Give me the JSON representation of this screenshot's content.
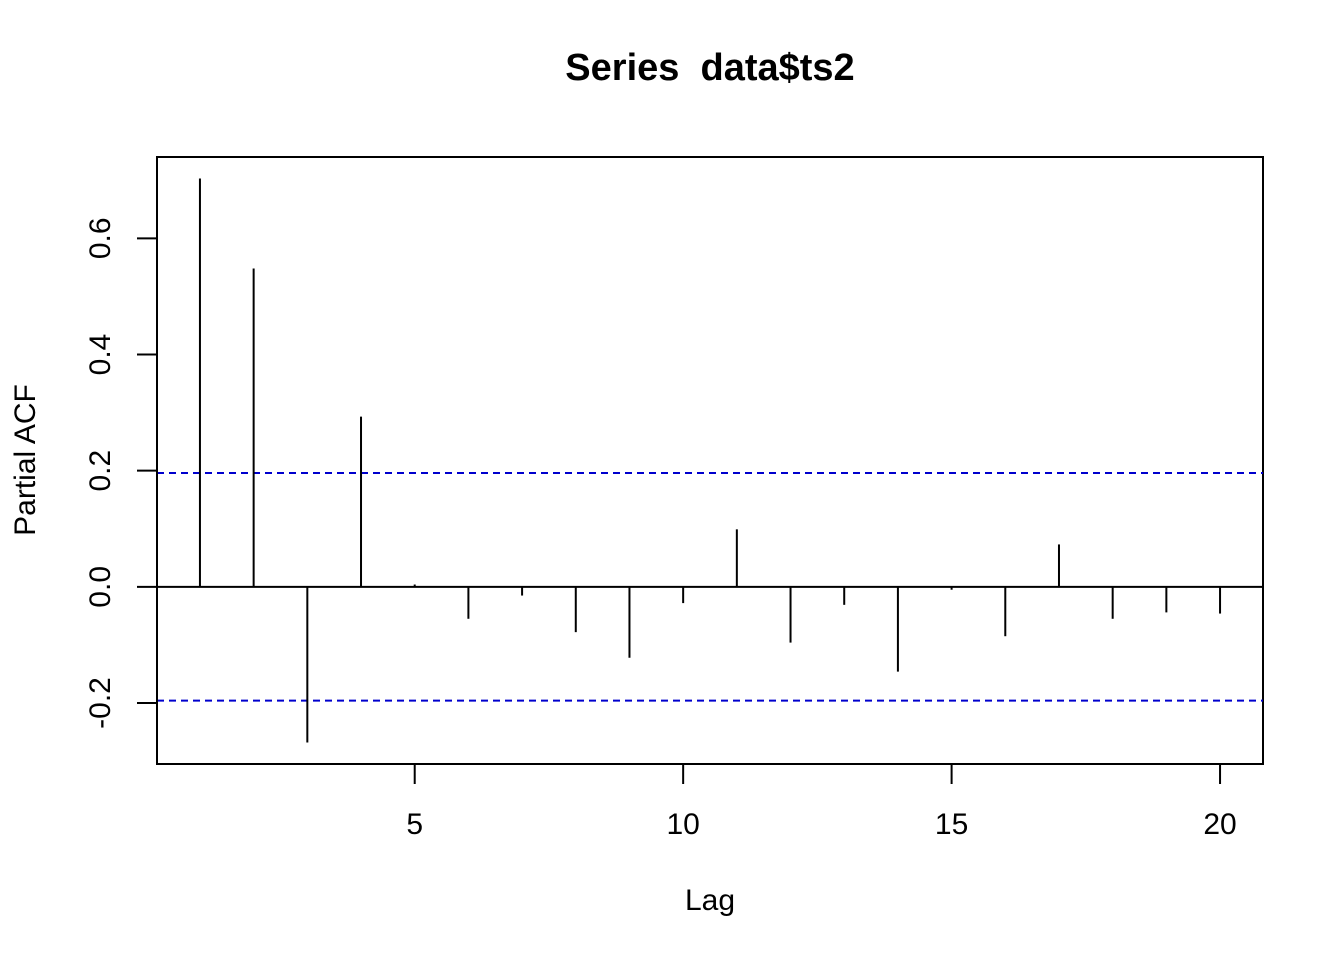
{
  "chart_data": {
    "type": "bar",
    "subtype": "partial-acf-spikes",
    "title": "Series  data$ts2",
    "xlabel": "Lag",
    "ylabel": "Partial ACF",
    "xlim": [
      0.2,
      20.8
    ],
    "ylim": [
      -0.305,
      0.74
    ],
    "x_ticks": [
      5,
      10,
      15,
      20
    ],
    "x_tick_labels": [
      "5",
      "10",
      "15",
      "20"
    ],
    "y_ticks": [
      -0.2,
      0.0,
      0.2,
      0.4,
      0.6
    ],
    "y_tick_labels": [
      "-0.2",
      "0.0",
      "0.2",
      "0.4",
      "0.6"
    ],
    "lags": [
      1,
      2,
      3,
      4,
      5,
      6,
      7,
      8,
      9,
      10,
      11,
      12,
      13,
      14,
      15,
      16,
      17,
      18,
      19,
      20
    ],
    "values": [
      0.703,
      0.548,
      -0.268,
      0.293,
      0.004,
      -0.055,
      -0.015,
      -0.078,
      -0.122,
      -0.028,
      0.099,
      -0.096,
      -0.031,
      -0.146,
      -0.005,
      -0.085,
      0.073,
      -0.055,
      -0.044,
      -0.046
    ],
    "confidence_bound": 0.196,
    "zero_line": true,
    "grid": false,
    "legend": "none",
    "colors": {
      "spike": "#000000",
      "confidence_line": "#0000cd",
      "axis": "#000000"
    }
  }
}
